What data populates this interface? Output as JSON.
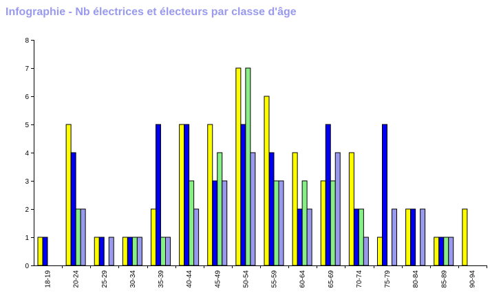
{
  "chart_data": {
    "type": "bar",
    "title": "Infographie - Nb électrices et électeurs par classe d'âge",
    "categories": [
      "18-19",
      "20-24",
      "25-29",
      "30-34",
      "35-39",
      "40-44",
      "45-49",
      "50-54",
      "55-59",
      "60-64",
      "65-69",
      "70-74",
      "75-79",
      "80-84",
      "85-89",
      "90-94"
    ],
    "ylim": [
      0,
      8
    ],
    "yticks": [
      0,
      1,
      2,
      3,
      4,
      5,
      6,
      7,
      8
    ],
    "grid": false,
    "legend": "none",
    "series": [
      {
        "color": "#ffff00",
        "values": [
          1,
          5,
          1,
          1,
          2,
          5,
          5,
          7,
          6,
          4,
          3,
          4,
          1,
          2,
          1,
          2
        ]
      },
      {
        "color": "#0000ee",
        "values": [
          1,
          4,
          1,
          1,
          5,
          5,
          3,
          5,
          4,
          2,
          5,
          2,
          5,
          2,
          1,
          0
        ]
      },
      {
        "color": "#88ee88",
        "values": [
          0,
          2,
          0,
          1,
          1,
          3,
          4,
          7,
          3,
          3,
          3,
          2,
          0,
          0,
          1,
          0
        ]
      },
      {
        "color": "#9999ee",
        "values": [
          0,
          2,
          1,
          1,
          1,
          2,
          3,
          4,
          3,
          2,
          4,
          1,
          2,
          2,
          1,
          0
        ]
      }
    ]
  }
}
